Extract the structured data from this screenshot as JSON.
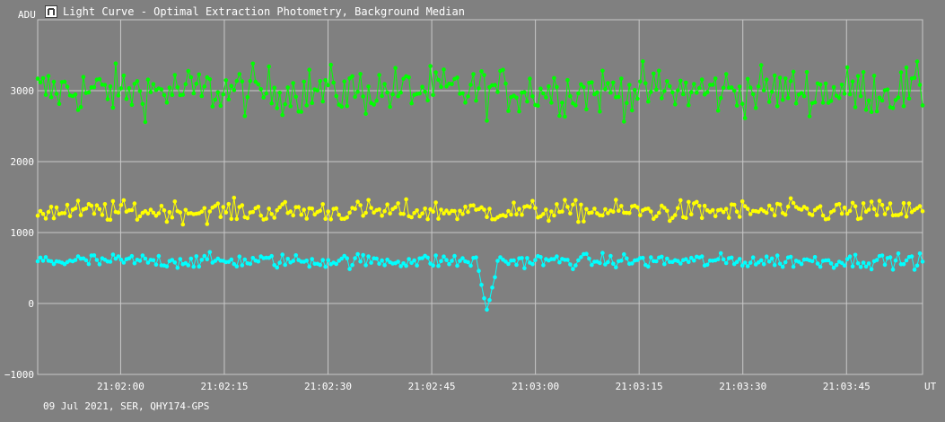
{
  "window": {
    "title": "Light Curve - Optimal Extraction Photometry, Background Median",
    "footer": "09 Jul 2021, SER, QHY174-GPS"
  },
  "colors": {
    "background": "#808080",
    "grid": "#c8c8c8",
    "green": "#00ff00",
    "yellow": "#ffff00",
    "cyan": "#00ffff"
  },
  "chart_data": {
    "type": "line",
    "title": "Light Curve - Optimal Extraction Photometry, Background Median",
    "ylabel": "ADU",
    "xlabel": "UT",
    "ylim": [
      -1000,
      4000
    ],
    "xlim": [
      "21:01:48",
      "21:03:56"
    ],
    "grid": true,
    "y_ticks": [
      "3000",
      "2000",
      "1000",
      "0",
      "−1000"
    ],
    "y_tick_values": [
      3000,
      2000,
      1000,
      0,
      -1000
    ],
    "x_ticks": [
      "21:02:00",
      "21:02:15",
      "21:02:30",
      "21:02:45",
      "21:03:00",
      "21:03:15",
      "21:03:30",
      "21:03:45"
    ],
    "series": [
      {
        "color": "#00ff00",
        "mean": 3000,
        "scatter": 170
      },
      {
        "color": "#ffff00",
        "mean": 1300,
        "scatter": 75
      },
      {
        "color": "#00ffff",
        "mean": 600,
        "scatter": 50,
        "dip": {
          "time": "21:02:53",
          "min_value": -100
        }
      }
    ]
  }
}
